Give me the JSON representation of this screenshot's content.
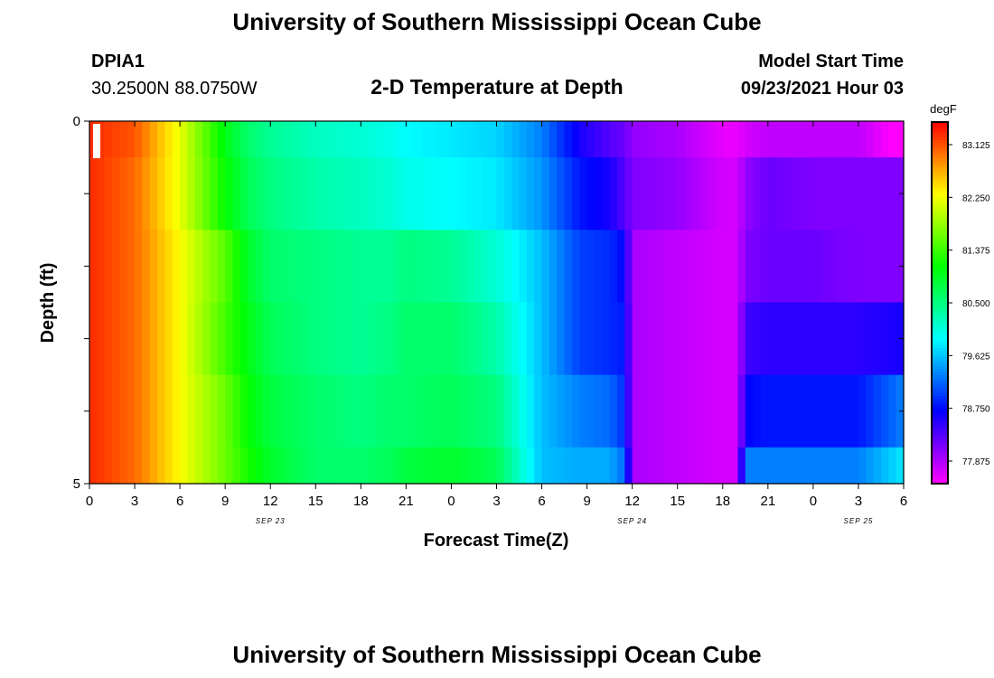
{
  "header": {
    "title": "University of Southern Mississippi Ocean Cube",
    "station": "DPIA1",
    "coords": "30.2500N  88.0750W",
    "plot_title": "2-D Temperature at Depth",
    "model_label": "Model Start Time",
    "model_time": "09/23/2021 Hour 03"
  },
  "footer": {
    "title": "University of Southern Mississippi Ocean Cube"
  },
  "chart_data": {
    "type": "heatmap",
    "title": "2-D Temperature at Depth",
    "xlabel": "Forecast Time(Z)",
    "ylabel": "Depth (ft)",
    "colorbar_unit": "degF",
    "colorbar_ticks": [
      "83.125",
      "82.250",
      "81.375",
      "80.500",
      "79.625",
      "78.750",
      "77.875"
    ],
    "colorbar_range": [
      77.5,
      83.5
    ],
    "x_range_hours": [
      0,
      54
    ],
    "x_tick_labels": [
      "0",
      "3",
      "6",
      "9",
      "12",
      "15",
      "18",
      "21",
      "0",
      "3",
      "6",
      "9",
      "12",
      "15",
      "18",
      "21",
      "0",
      "3",
      "6"
    ],
    "date_labels": [
      {
        "text": "SEP 23",
        "hour": 12
      },
      {
        "text": "SEP 24",
        "hour": 36
      },
      {
        "text": "SEP 25",
        "hour": 51
      }
    ],
    "y_range": [
      0,
      5
    ],
    "y_tick_labels": [
      "0",
      "5"
    ],
    "depth_layers": [
      {
        "from": 0.0,
        "to": 0.5
      },
      {
        "from": 0.5,
        "to": 1.5
      },
      {
        "from": 1.5,
        "to": 2.5
      },
      {
        "from": 2.5,
        "to": 3.5
      },
      {
        "from": 3.5,
        "to": 4.5
      },
      {
        "from": 4.5,
        "to": 5.0
      }
    ],
    "key_times": [
      0,
      3,
      6,
      9,
      10.5,
      12,
      15,
      18,
      20,
      21,
      24,
      27,
      30,
      32.5,
      34.5,
      35.5,
      36,
      39,
      42,
      43,
      43.5,
      45,
      48,
      51,
      54
    ],
    "temperature_degF": [
      [
        83.3,
        83.1,
        82.2,
        81.0,
        80.6,
        80.4,
        80.2,
        80.1,
        80.0,
        79.9,
        79.8,
        79.7,
        79.3,
        78.6,
        78.3,
        78.2,
        78.0,
        77.9,
        77.6,
        77.6,
        77.7,
        77.8,
        77.8,
        77.8,
        77.4
      ],
      [
        83.3,
        83.0,
        82.2,
        81.1,
        80.7,
        80.5,
        80.3,
        80.2,
        80.1,
        80.0,
        79.9,
        79.8,
        79.4,
        78.8,
        78.6,
        78.3,
        78.1,
        78.0,
        77.7,
        77.7,
        78.0,
        78.2,
        78.1,
        78.1,
        78.1
      ],
      [
        83.3,
        83.0,
        82.3,
        81.5,
        80.9,
        80.6,
        80.5,
        80.4,
        80.4,
        80.5,
        80.4,
        80.1,
        79.6,
        79.0,
        78.9,
        78.7,
        77.9,
        77.8,
        77.7,
        77.7,
        78.1,
        78.2,
        78.2,
        78.1,
        78.1
      ],
      [
        83.3,
        83.0,
        82.3,
        81.4,
        81.0,
        80.7,
        80.5,
        80.4,
        80.5,
        80.6,
        80.6,
        80.3,
        79.6,
        79.0,
        78.9,
        78.8,
        77.9,
        77.8,
        77.7,
        77.7,
        78.4,
        78.5,
        78.5,
        78.5,
        78.6
      ],
      [
        83.3,
        83.0,
        82.3,
        81.6,
        81.1,
        80.8,
        80.6,
        80.5,
        80.6,
        80.6,
        80.7,
        80.5,
        79.6,
        79.3,
        79.2,
        78.9,
        77.9,
        77.8,
        77.7,
        77.7,
        78.7,
        78.8,
        78.8,
        78.8,
        79.3
      ],
      [
        83.3,
        83.0,
        82.3,
        81.6,
        81.2,
        80.9,
        80.6,
        80.6,
        80.7,
        80.8,
        80.9,
        80.7,
        79.6,
        79.5,
        79.5,
        79.2,
        77.9,
        77.8,
        77.7,
        77.7,
        79.3,
        79.3,
        79.3,
        79.3,
        79.8
      ]
    ]
  }
}
